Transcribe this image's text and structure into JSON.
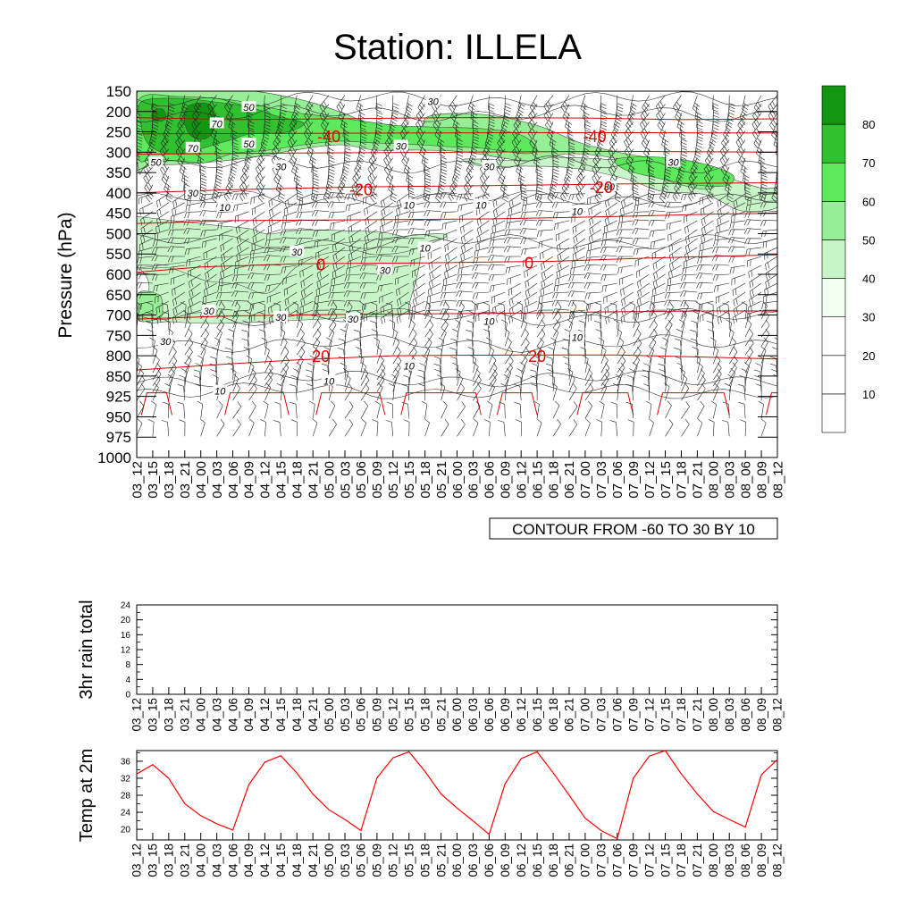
{
  "title": "Station: ILLELA",
  "time_labels": [
    "03_12",
    "03_15",
    "03_18",
    "03_21",
    "04_00",
    "04_03",
    "04_06",
    "04_09",
    "04_12",
    "04_15",
    "04_18",
    "04_21",
    "05_00",
    "05_03",
    "05_06",
    "05_09",
    "05_12",
    "05_15",
    "05_18",
    "05_21",
    "06_00",
    "06_03",
    "06_06",
    "06_09",
    "06_12",
    "06_15",
    "06_18",
    "06_21",
    "07_00",
    "07_03",
    "07_06",
    "07_09",
    "07_12",
    "07_15",
    "07_18",
    "07_21",
    "08_00",
    "08_03",
    "08_06",
    "08_09",
    "08_12"
  ],
  "chart_data": [
    {
      "type": "heatmap",
      "name": "upper-air-cross-section",
      "ylabel": "Pressure (hPa)",
      "y_ticks": [
        "150",
        "200",
        "250",
        "300",
        "350",
        "400",
        "450",
        "500",
        "550",
        "600",
        "650",
        "700",
        "750",
        "800",
        "850",
        "925",
        "950",
        "975",
        "1000"
      ],
      "legend_levels": [
        "10",
        "20",
        "30",
        "40",
        "50",
        "60",
        "70",
        "80"
      ],
      "legend_colors": [
        "#ffffff",
        "#ffffff",
        "#ffffff",
        "#f0fff0",
        "#c8f5c8",
        "#96ee96",
        "#5cea5c",
        "#30c030",
        "#129612"
      ],
      "temperature_contour_labels": [
        {
          "text": "-40",
          "p": 260,
          "t": 12
        },
        {
          "text": "-40",
          "p": 260,
          "t": 28.6
        },
        {
          "text": "-20",
          "p": 390,
          "t": 14
        },
        {
          "text": "-20",
          "p": 385,
          "t": 29
        },
        {
          "text": "0",
          "p": 575,
          "t": 11.5
        },
        {
          "text": "0",
          "p": 570,
          "t": 24.5
        },
        {
          "text": "20",
          "p": 800,
          "t": 11.5
        },
        {
          "text": "20",
          "p": 800,
          "t": 25
        }
      ],
      "humidity_contour_labels": [
        {
          "text": "50",
          "p": 190,
          "t": 7
        },
        {
          "text": "70",
          "p": 230,
          "t": 5
        },
        {
          "text": "70",
          "p": 290,
          "t": 3.5
        },
        {
          "text": "50",
          "p": 280,
          "t": 7
        },
        {
          "text": "50",
          "p": 325,
          "t": 1.2
        },
        {
          "text": "30",
          "p": 175,
          "t": 18.5
        },
        {
          "text": "30",
          "p": 335,
          "t": 9
        },
        {
          "text": "30",
          "p": 335,
          "t": 22
        },
        {
          "text": "30",
          "p": 325,
          "t": 33.5
        },
        {
          "text": "30",
          "p": 385,
          "t": 29.5
        },
        {
          "text": "30",
          "p": 400,
          "t": 3.5
        },
        {
          "text": "30",
          "p": 285,
          "t": 16.5
        },
        {
          "text": "30",
          "p": 545,
          "t": 10
        },
        {
          "text": "30",
          "p": 590,
          "t": 15.5
        },
        {
          "text": "30",
          "p": 690,
          "t": 4.5
        },
        {
          "text": "30",
          "p": 705,
          "t": 9
        },
        {
          "text": "30",
          "p": 710,
          "t": 13.5
        },
        {
          "text": "30",
          "p": 765,
          "t": 1.8
        },
        {
          "text": "10",
          "p": 435,
          "t": 5.5
        },
        {
          "text": "10",
          "p": 430,
          "t": 17
        },
        {
          "text": "10",
          "p": 430,
          "t": 21.5
        },
        {
          "text": "10",
          "p": 445,
          "t": 27.5
        },
        {
          "text": "10",
          "p": 535,
          "t": 18
        },
        {
          "text": "10",
          "p": 715,
          "t": 22
        },
        {
          "text": "10",
          "p": 755,
          "t": 27.5
        },
        {
          "text": "10",
          "p": 825,
          "t": 17
        },
        {
          "text": "10",
          "p": 868,
          "t": 12
        },
        {
          "text": "10",
          "p": 905,
          "t": 5.2
        }
      ],
      "contour_info": "CONTOUR FROM -60 TO 30 BY 10"
    },
    {
      "type": "line",
      "name": "rain-chart",
      "ylabel": "3hr rain total",
      "ylim": [
        0,
        24
      ],
      "y_ticks": [
        "0",
        "4",
        "8",
        "12",
        "16",
        "20",
        "24"
      ],
      "series": [
        {
          "name": "3hr rain total",
          "values": [
            0,
            0,
            0,
            0,
            0,
            0,
            0,
            0,
            0,
            0,
            0,
            0,
            0,
            0,
            0,
            0,
            0,
            0,
            0,
            0,
            0,
            0,
            0,
            0,
            0,
            0,
            0,
            0,
            0,
            0,
            0,
            0,
            0,
            0,
            0,
            0,
            0,
            0,
            0,
            0,
            0
          ]
        }
      ]
    },
    {
      "type": "line",
      "name": "temp-chart",
      "ylabel": "Temp at 2m",
      "ylim": [
        17.5,
        38.5
      ],
      "y_ticks": [
        "20",
        "24",
        "28",
        "32",
        "36"
      ],
      "series": [
        {
          "name": "Temp at 2m",
          "color": "#ff0000",
          "values": [
            33,
            35.2,
            32,
            26,
            23.2,
            21.3,
            19.8,
            30.5,
            35.8,
            37.3,
            33.2,
            28.3,
            24.6,
            22.3,
            19.7,
            32.1,
            36.8,
            38.2,
            33.6,
            28.3,
            25,
            22,
            18.8,
            30.7,
            36.6,
            38.2,
            33.3,
            28,
            22.6,
            19.7,
            17.8,
            32,
            37.2,
            38.5,
            33,
            28.3,
            24.2,
            22.3,
            20.5,
            32.8,
            36.4
          ]
        }
      ]
    }
  ]
}
